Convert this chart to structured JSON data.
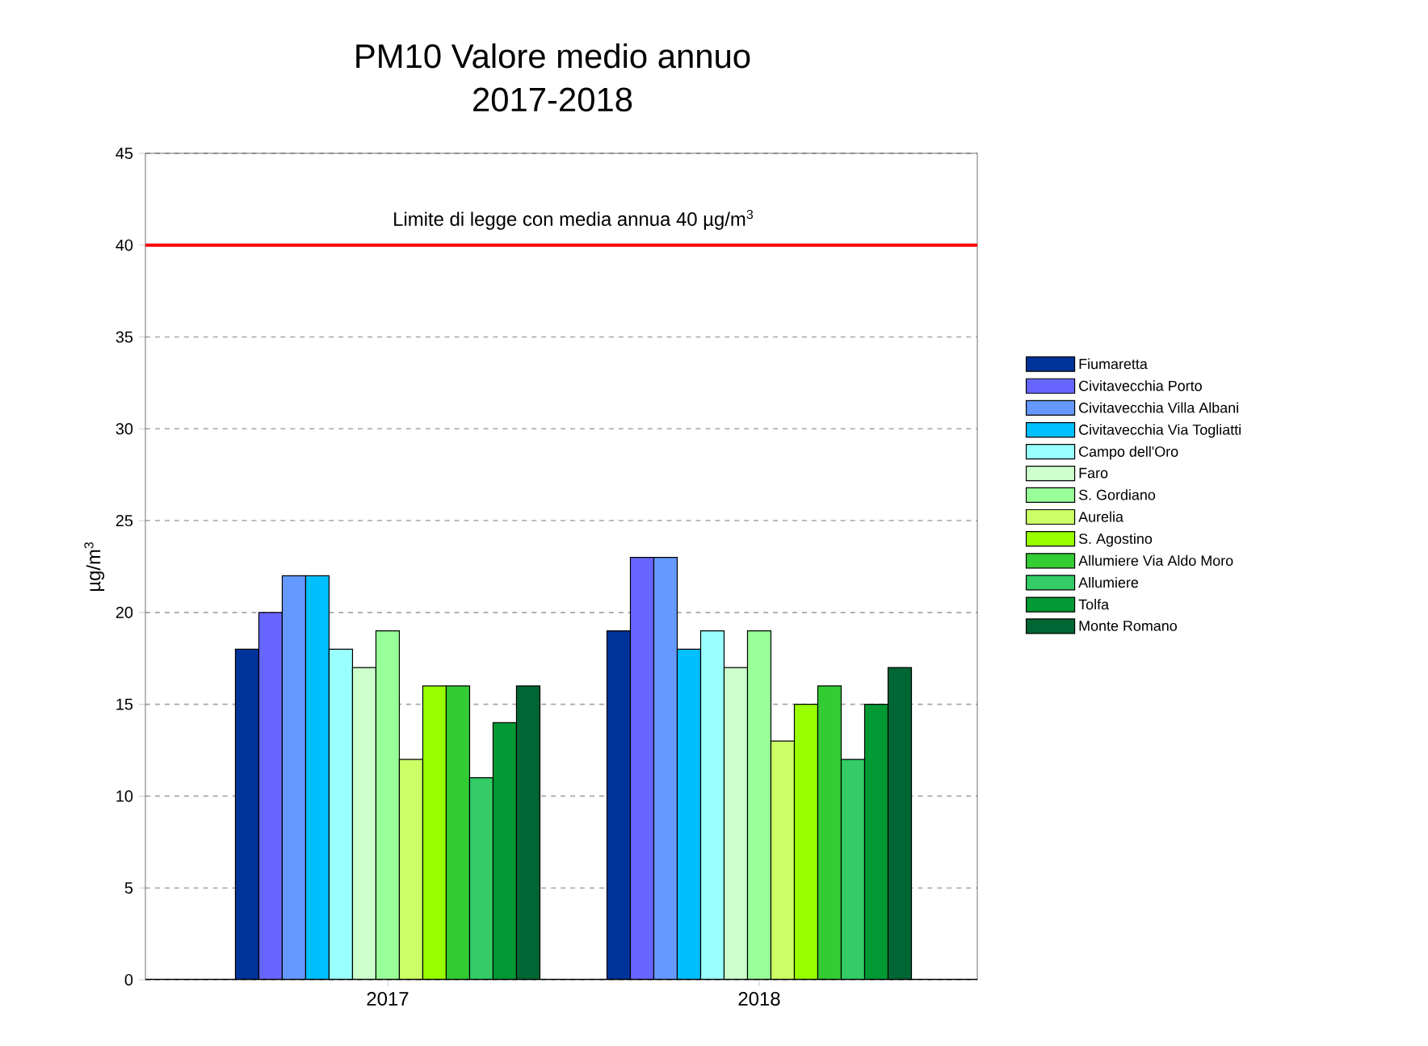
{
  "chart_data": {
    "type": "bar",
    "title": "PM10  Valore medio annuo",
    "subtitle": "2017-2018",
    "ylabel": "µg/m$^{3}$",
    "categories": [
      "2017",
      "2018"
    ],
    "series": [
      {
        "name": "Fiumaretta",
        "color": "#003399",
        "values": [
          18,
          19
        ]
      },
      {
        "name": "Civitavecchia Porto",
        "color": "#6666ff",
        "values": [
          20,
          23
        ]
      },
      {
        "name": "Civitavecchia Villa Albani",
        "color": "#6699ff",
        "values": [
          22,
          23
        ]
      },
      {
        "name": "Civitavecchia Via Togliatti",
        "color": "#00bfff",
        "values": [
          22,
          18
        ]
      },
      {
        "name": "Campo dell'Oro",
        "color": "#99ffff",
        "values": [
          18,
          19
        ]
      },
      {
        "name": "Faro",
        "color": "#ccffcc",
        "values": [
          17,
          17
        ]
      },
      {
        "name": "S. Gordiano",
        "color": "#99ff99",
        "values": [
          19,
          19
        ]
      },
      {
        "name": "Aurelia",
        "color": "#ccff66",
        "values": [
          12,
          13
        ]
      },
      {
        "name": "S. Agostino",
        "color": "#99ff00",
        "values": [
          16,
          15
        ]
      },
      {
        "name": "Allumiere Via Aldo Moro",
        "color": "#33cc33",
        "values": [
          16,
          16
        ]
      },
      {
        "name": "Allumiere",
        "color": "#33cc66",
        "values": [
          11,
          12
        ]
      },
      {
        "name": "Tolfa",
        "color": "#009933",
        "values": [
          14,
          15
        ]
      },
      {
        "name": "Monte Romano",
        "color": "#006633",
        "values": [
          16,
          17
        ]
      }
    ],
    "ylim": [
      0,
      45
    ],
    "yticks": [
      0,
      5,
      10,
      15,
      20,
      25,
      30,
      35,
      40,
      45
    ],
    "ref_lines": [
      {
        "axis": "y",
        "value": 40,
        "label": "Limite di legge con media annua 40 µg/m$^{3}$",
        "color": "#ff0000"
      }
    ],
    "grid": "y",
    "legend": "right"
  }
}
